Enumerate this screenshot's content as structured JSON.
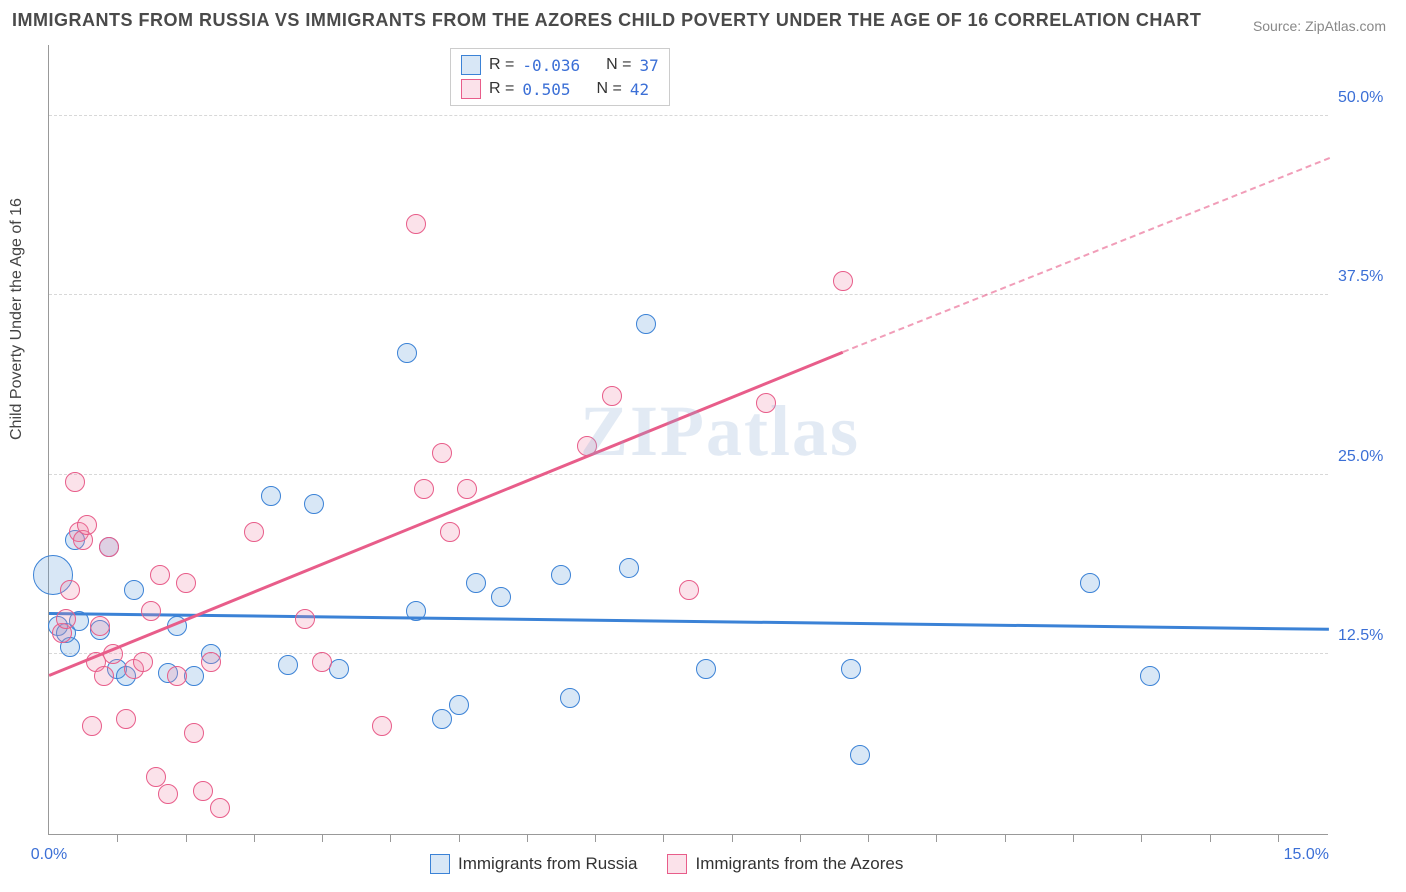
{
  "title": "IMMIGRANTS FROM RUSSIA VS IMMIGRANTS FROM THE AZORES CHILD POVERTY UNDER THE AGE OF 16 CORRELATION CHART",
  "source": "Source: ZipAtlas.com",
  "watermark": "ZIPatlas",
  "ylabel": "Child Poverty Under the Age of 16",
  "chart": {
    "type": "scatter",
    "background_color": "#ffffff",
    "grid_color": "#d8d8d8",
    "axis_color": "#999999",
    "tick_label_color": "#3b6fd6",
    "xlim": [
      0,
      15
    ],
    "ylim": [
      0,
      55
    ],
    "x_ticks": [
      0.8,
      1.6,
      2.4,
      3.2,
      4.0,
      4.8,
      5.6,
      6.4,
      7.2,
      8.0,
      8.8,
      9.6,
      10.4,
      11.2,
      12.0,
      12.8,
      13.6,
      14.4
    ],
    "x_tick_labels": {
      "0": "0.0%",
      "15": "15.0%"
    },
    "y_gridlines": [
      12.5,
      25.0,
      37.5,
      50.0
    ],
    "y_tick_labels": {
      "12.5": "12.5%",
      "25.0": "25.0%",
      "37.5": "37.5%",
      "50.0": "50.0%"
    },
    "marker_radius": 10,
    "marker_stroke_width": 1.5,
    "marker_fill_opacity": 0.25
  },
  "series": [
    {
      "name": "Immigrants from Russia",
      "legend_label": "Immigrants from Russia",
      "stroke": "#3b82d6",
      "fill": "rgba(100,160,220,0.25)",
      "R": "-0.036",
      "N": "37",
      "trend": {
        "x1": 0,
        "y1": 15.3,
        "x2": 15,
        "y2": 14.2,
        "dash": false
      },
      "points": [
        {
          "x": 0.05,
          "y": 18.0,
          "r": 20
        },
        {
          "x": 0.1,
          "y": 14.5
        },
        {
          "x": 0.2,
          "y": 14.0
        },
        {
          "x": 0.25,
          "y": 13.0
        },
        {
          "x": 0.3,
          "y": 20.5
        },
        {
          "x": 0.35,
          "y": 14.8
        },
        {
          "x": 0.6,
          "y": 14.2
        },
        {
          "x": 0.7,
          "y": 20.0
        },
        {
          "x": 0.8,
          "y": 11.5
        },
        {
          "x": 0.9,
          "y": 11.0
        },
        {
          "x": 1.0,
          "y": 17.0
        },
        {
          "x": 1.4,
          "y": 11.2
        },
        {
          "x": 1.5,
          "y": 14.5
        },
        {
          "x": 1.7,
          "y": 11.0
        },
        {
          "x": 1.9,
          "y": 12.5
        },
        {
          "x": 2.6,
          "y": 23.5
        },
        {
          "x": 2.8,
          "y": 11.8
        },
        {
          "x": 3.1,
          "y": 23.0
        },
        {
          "x": 3.4,
          "y": 11.5
        },
        {
          "x": 4.2,
          "y": 33.5
        },
        {
          "x": 4.3,
          "y": 15.5
        },
        {
          "x": 4.6,
          "y": 8.0
        },
        {
          "x": 4.8,
          "y": 9.0
        },
        {
          "x": 5.0,
          "y": 17.5
        },
        {
          "x": 5.3,
          "y": 16.5
        },
        {
          "x": 6.0,
          "y": 18.0
        },
        {
          "x": 6.1,
          "y": 9.5
        },
        {
          "x": 6.8,
          "y": 18.5
        },
        {
          "x": 7.0,
          "y": 35.5
        },
        {
          "x": 7.7,
          "y": 11.5
        },
        {
          "x": 9.4,
          "y": 11.5
        },
        {
          "x": 9.5,
          "y": 5.5
        },
        {
          "x": 12.2,
          "y": 17.5
        },
        {
          "x": 12.9,
          "y": 11.0
        }
      ]
    },
    {
      "name": "Immigrants from the Azores",
      "legend_label": "Immigrants from the Azores",
      "stroke": "#e85d8a",
      "fill": "rgba(240,140,170,0.25)",
      "R": " 0.505",
      "N": "42",
      "trend": {
        "x1": 0,
        "y1": 11.0,
        "x2": 9.3,
        "y2": 33.5,
        "dash": false
      },
      "trend_ext": {
        "x1": 9.3,
        "y1": 33.5,
        "x2": 15,
        "y2": 47.0,
        "dash": true
      },
      "points": [
        {
          "x": 0.15,
          "y": 14.0
        },
        {
          "x": 0.2,
          "y": 15.0
        },
        {
          "x": 0.25,
          "y": 17.0
        },
        {
          "x": 0.3,
          "y": 24.5
        },
        {
          "x": 0.35,
          "y": 21.0
        },
        {
          "x": 0.4,
          "y": 20.5
        },
        {
          "x": 0.45,
          "y": 21.5
        },
        {
          "x": 0.5,
          "y": 7.5
        },
        {
          "x": 0.55,
          "y": 12.0
        },
        {
          "x": 0.6,
          "y": 14.5
        },
        {
          "x": 0.65,
          "y": 11.0
        },
        {
          "x": 0.7,
          "y": 20.0
        },
        {
          "x": 0.75,
          "y": 12.5
        },
        {
          "x": 0.9,
          "y": 8.0
        },
        {
          "x": 1.0,
          "y": 11.5
        },
        {
          "x": 1.1,
          "y": 12.0
        },
        {
          "x": 1.2,
          "y": 15.5
        },
        {
          "x": 1.25,
          "y": 4.0
        },
        {
          "x": 1.3,
          "y": 18.0
        },
        {
          "x": 1.4,
          "y": 2.8
        },
        {
          "x": 1.5,
          "y": 11.0
        },
        {
          "x": 1.6,
          "y": 17.5
        },
        {
          "x": 1.7,
          "y": 7.0
        },
        {
          "x": 1.8,
          "y": 3.0
        },
        {
          "x": 1.9,
          "y": 12.0
        },
        {
          "x": 2.0,
          "y": 1.8
        },
        {
          "x": 2.4,
          "y": 21.0
        },
        {
          "x": 3.0,
          "y": 15.0
        },
        {
          "x": 3.2,
          "y": 12.0
        },
        {
          "x": 3.9,
          "y": 7.5
        },
        {
          "x": 4.3,
          "y": 42.5
        },
        {
          "x": 4.4,
          "y": 24.0
        },
        {
          "x": 4.6,
          "y": 26.5
        },
        {
          "x": 4.7,
          "y": 21.0
        },
        {
          "x": 4.9,
          "y": 24.0
        },
        {
          "x": 6.3,
          "y": 27.0
        },
        {
          "x": 6.6,
          "y": 30.5
        },
        {
          "x": 7.5,
          "y": 17.0
        },
        {
          "x": 8.4,
          "y": 30.0
        },
        {
          "x": 9.3,
          "y": 38.5
        }
      ]
    }
  ],
  "legend_top": {
    "r_label": "R =",
    "n_label": "N ="
  }
}
